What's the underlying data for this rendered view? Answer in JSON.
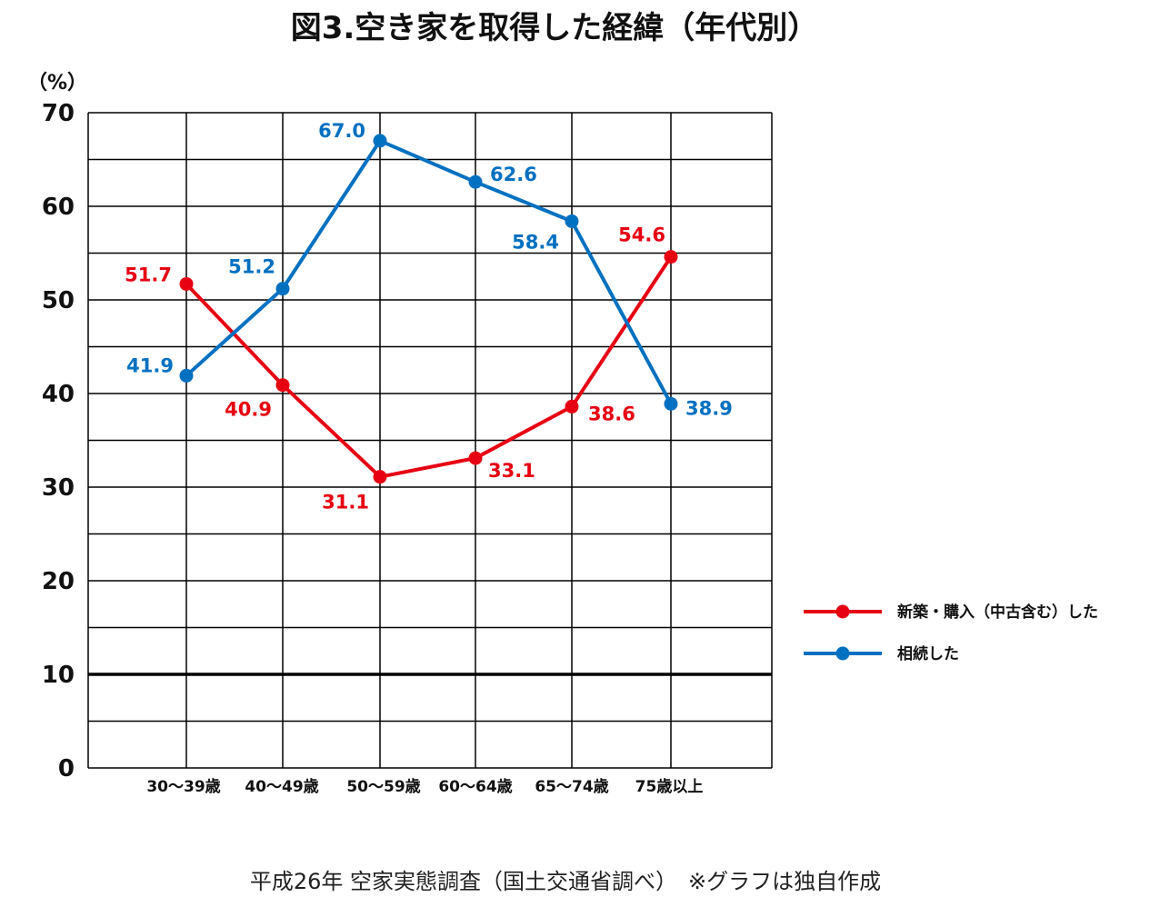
{
  "title": "図3.空き家を取得した経緯（年代別）",
  "source_note": "平成26年 空家実態調査（国土交通省調べ）　※グラフは独自作成",
  "chart_data": {
    "type": "line",
    "unit_label": "（%）",
    "ylim": [
      0,
      70
    ],
    "yticks": [
      "0",
      "10",
      "20",
      "30",
      "40",
      "50",
      "60",
      "70"
    ],
    "categories": [
      "30～39歳",
      "40～49歳",
      "50～59歳",
      "60～64歳",
      "65～74歳",
      "75歳以上"
    ],
    "grid": true,
    "legend_position": "right",
    "series": [
      {
        "name": "新築・購入（中古含む）した",
        "color": "#e60012",
        "values": [
          51.7,
          40.9,
          31.1,
          33.1,
          38.6,
          54.6
        ],
        "labels": [
          "51.7",
          "40.9",
          "31.1",
          "33.1",
          "38.6",
          "54.6"
        ]
      },
      {
        "name": "相続した",
        "color": "#0070c0",
        "values": [
          41.9,
          51.2,
          67.0,
          62.6,
          58.4,
          38.9
        ],
        "labels": [
          "41.9",
          "51.2",
          "67.0",
          "62.6",
          "58.4",
          "38.9"
        ]
      }
    ]
  }
}
